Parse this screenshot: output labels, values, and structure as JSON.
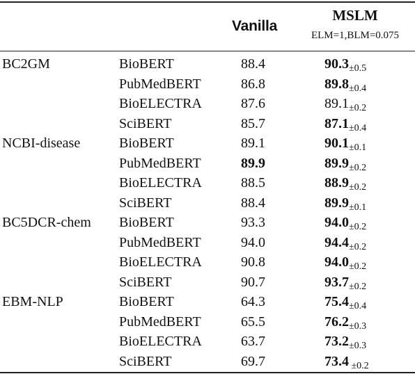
{
  "header": {
    "vanilla": "Vanilla",
    "mslm": "MSLM",
    "mslm_sub": "ELM=1,BLM=0.075"
  },
  "rows": [
    {
      "dataset": "BC2GM",
      "model": "BioBERT",
      "vanilla": "88.4",
      "vanilla_bold": false,
      "mslm": "90.3",
      "mslm_bold": true,
      "std": "±0.5"
    },
    {
      "dataset": "",
      "model": "PubMedBERT",
      "vanilla": "86.8",
      "vanilla_bold": false,
      "mslm": "89.8",
      "mslm_bold": true,
      "std": "±0.4"
    },
    {
      "dataset": "",
      "model": "BioELECTRA",
      "vanilla": "87.6",
      "vanilla_bold": false,
      "mslm": "89.1",
      "mslm_bold": false,
      "std": "±0.2"
    },
    {
      "dataset": "",
      "model": "SciBERT",
      "vanilla": "85.7",
      "vanilla_bold": false,
      "mslm": "87.1",
      "mslm_bold": true,
      "std": "±0.4"
    },
    {
      "dataset": "NCBI-disease",
      "model": "BioBERT",
      "vanilla": "89.1",
      "vanilla_bold": false,
      "mslm": "90.1",
      "mslm_bold": true,
      "std": "±0.1"
    },
    {
      "dataset": "",
      "model": "PubMedBERT",
      "vanilla": "89.9",
      "vanilla_bold": true,
      "mslm": "89.9",
      "mslm_bold": true,
      "std": "±0.2"
    },
    {
      "dataset": "",
      "model": "BioELECTRA",
      "vanilla": "88.5",
      "vanilla_bold": false,
      "mslm": "88.9",
      "mslm_bold": true,
      "std": "±0.2"
    },
    {
      "dataset": "",
      "model": "SciBERT",
      "vanilla": "88.4",
      "vanilla_bold": false,
      "mslm": "89.9",
      "mslm_bold": true,
      "std": "±0.1"
    },
    {
      "dataset": "BC5DCR-chem",
      "model": "BioBERT",
      "vanilla": "93.3",
      "vanilla_bold": false,
      "mslm": "94.0",
      "mslm_bold": true,
      "std": "±0.2"
    },
    {
      "dataset": "",
      "model": "PubMedBERT",
      "vanilla": "94.0",
      "vanilla_bold": false,
      "mslm": "94.4",
      "mslm_bold": true,
      "std": "±0.2"
    },
    {
      "dataset": "",
      "model": "BioELECTRA",
      "vanilla": "90.8",
      "vanilla_bold": false,
      "mslm": "94.0",
      "mslm_bold": true,
      "std": "±0.2"
    },
    {
      "dataset": "",
      "model": "SciBERT",
      "vanilla": "90.7",
      "vanilla_bold": false,
      "mslm": "93.7",
      "mslm_bold": true,
      "std": "±0.2"
    },
    {
      "dataset": "EBM-NLP",
      "model": "BioBERT",
      "vanilla": "64.3",
      "vanilla_bold": false,
      "mslm": "75.4",
      "mslm_bold": true,
      "std": "±0.4"
    },
    {
      "dataset": "",
      "model": "PubMedBERT",
      "vanilla": "65.5",
      "vanilla_bold": false,
      "mslm": "76.2",
      "mslm_bold": true,
      "std": "±0.3"
    },
    {
      "dataset": "",
      "model": "BioELECTRA",
      "vanilla": "63.7",
      "vanilla_bold": false,
      "mslm": "73.2",
      "mslm_bold": true,
      "std": "±0.3"
    },
    {
      "dataset": "",
      "model": "SciBERT",
      "vanilla": "69.7",
      "vanilla_bold": false,
      "mslm": "73.4",
      "mslm_bold": true,
      "std": " ±0.2"
    }
  ]
}
